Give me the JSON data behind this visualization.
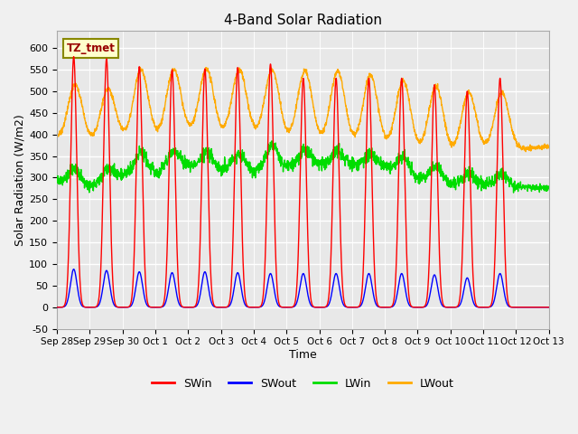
{
  "title": "4-Band Solar Radiation",
  "xlabel": "Time",
  "ylabel": "Solar Radiation (W/m2)",
  "annotation": "TZ_tmet",
  "ylim": [
    -50,
    640
  ],
  "yticks": [
    -50,
    0,
    50,
    100,
    150,
    200,
    250,
    300,
    350,
    400,
    450,
    500,
    550,
    600
  ],
  "colors": {
    "SWin": "#ff0000",
    "SWout": "#0000ff",
    "LWin": "#00dd00",
    "LWout": "#ffaa00"
  },
  "n_days": 15,
  "x_tick_labels": [
    "Sep 28",
    "Sep 29",
    "Sep 30",
    "Oct 1",
    "Oct 2",
    "Oct 3",
    "Oct 4",
    "Oct 5",
    "Oct 6",
    "Oct 7",
    "Oct 8",
    "Oct 9",
    "Oct 10",
    "Oct 11",
    "Oct 12",
    "Oct 13"
  ],
  "legend_entries": [
    "SWin",
    "SWout",
    "LWin",
    "LWout"
  ],
  "sw_peaks": [
    580,
    575,
    557,
    550,
    552,
    555,
    563,
    530,
    530,
    530,
    530,
    515,
    500,
    530,
    0
  ],
  "sw_out_peaks": [
    88,
    85,
    82,
    80,
    82,
    80,
    78,
    78,
    78,
    78,
    78,
    75,
    68,
    78,
    0
  ],
  "lwin_base": [
    295,
    275,
    305,
    310,
    325,
    322,
    315,
    325,
    330,
    330,
    325,
    300,
    285,
    285,
    280
  ],
  "lwin_day_peaks": [
    38,
    30,
    50,
    45,
    35,
    35,
    55,
    35,
    30,
    25,
    35,
    35,
    25,
    25,
    0
  ],
  "lwout_base": [
    390,
    380,
    390,
    390,
    400,
    395,
    395,
    385,
    380,
    375,
    370,
    360,
    355,
    358,
    365
  ],
  "lwout_day_peaks": [
    130,
    120,
    160,
    155,
    155,
    155,
    160,
    165,
    170,
    165,
    160,
    155,
    140,
    135,
    0
  ]
}
